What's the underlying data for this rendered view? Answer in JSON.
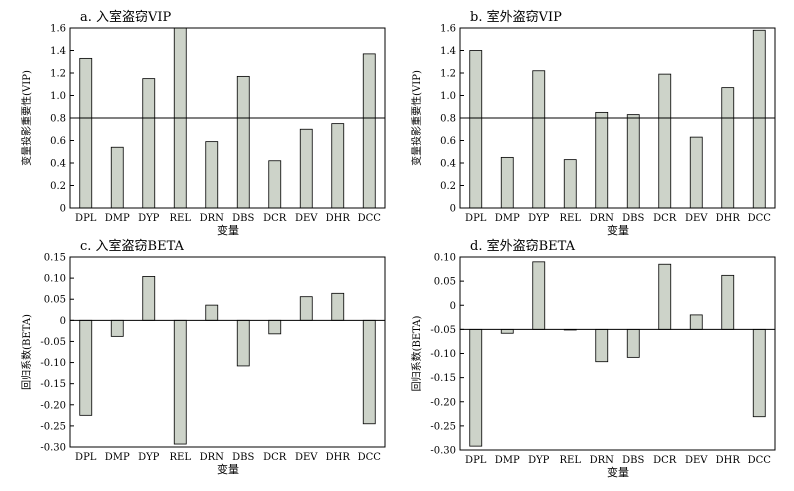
{
  "chart_data": [
    {
      "type": "bar",
      "title": "a. 入室盗窃VIP",
      "ylabel": "变量投影重要性(VIP)",
      "xlabel": "变量",
      "categories": [
        "DPL",
        "DMP",
        "DYP",
        "REL",
        "DRN",
        "DBS",
        "DCR",
        "DEV",
        "DHR",
        "DCC"
      ],
      "values": [
        1.33,
        0.54,
        1.15,
        1.6,
        0.59,
        1.17,
        0.42,
        0.7,
        0.75,
        1.37
      ],
      "ylim": [
        0,
        1.6
      ],
      "yticks": [
        0,
        0.2,
        0.4,
        0.6,
        0.8,
        1.0,
        1.2,
        1.4,
        1.6
      ],
      "ytick_labels": [
        "0",
        "0.2",
        "0.4",
        "0.6",
        "0.8",
        "1.0",
        "1.2",
        "1.4",
        "1.6"
      ],
      "reference_line": 0.8,
      "bar_color": "#cdd3c9",
      "grid": false
    },
    {
      "type": "bar",
      "title": "b. 室外盗窃VIP",
      "ylabel": "变量投影重要性(VIP)",
      "xlabel": "变量",
      "categories": [
        "DPL",
        "DMP",
        "DYP",
        "REL",
        "DRN",
        "DBS",
        "DCR",
        "DEV",
        "DHR",
        "DCC"
      ],
      "values": [
        1.4,
        0.45,
        1.22,
        0.43,
        0.85,
        0.83,
        1.19,
        0.63,
        1.07,
        1.58
      ],
      "ylim": [
        0,
        1.6
      ],
      "yticks": [
        0,
        0.2,
        0.4,
        0.6,
        0.8,
        1.0,
        1.2,
        1.4,
        1.6
      ],
      "ytick_labels": [
        "0",
        "0.2",
        "0.4",
        "0.6",
        "0.8",
        "1.0",
        "1.2",
        "1.4",
        "1.6"
      ],
      "reference_line": 0.8,
      "bar_color": "#cdd3c9",
      "grid": false
    },
    {
      "type": "bar",
      "title": "c. 入室盗窃BETA",
      "ylabel": "回归系数(BETA)",
      "xlabel": "变量",
      "categories": [
        "DPL",
        "DMP",
        "DYP",
        "REL",
        "DRN",
        "DBS",
        "DCR",
        "DEV",
        "DHR",
        "DCC"
      ],
      "values": [
        -0.225,
        -0.038,
        0.104,
        -0.293,
        0.036,
        -0.108,
        -0.032,
        0.056,
        0.064,
        -0.245
      ],
      "ylim": [
        -0.3,
        0.15
      ],
      "yticks": [
        -0.3,
        -0.25,
        -0.2,
        -0.15,
        -0.1,
        -0.05,
        0,
        0.05,
        0.1,
        0.15
      ],
      "ytick_labels": [
        "-0.30",
        "-0.25",
        "-0.20",
        "-0.15",
        "-0.10",
        "-0.05",
        "0",
        "0.05",
        "0.10",
        "0.15"
      ],
      "baseline": 0,
      "bar_color": "#cdd3c9",
      "grid": false
    },
    {
      "type": "bar",
      "title": "d. 室外盗窃BETA",
      "ylabel": "回归系数(BETA)",
      "xlabel": "变量",
      "categories": [
        "DPL",
        "DMP",
        "DYP",
        "REL",
        "DRN",
        "DBS",
        "DCR",
        "DEV",
        "DHR",
        "DCC"
      ],
      "values": [
        -0.292,
        -0.058,
        0.09,
        -0.051,
        -0.117,
        -0.108,
        0.085,
        -0.02,
        0.062,
        -0.231
      ],
      "ylim": [
        -0.3,
        0.1
      ],
      "yticks": [
        -0.3,
        -0.25,
        -0.2,
        -0.15,
        -0.1,
        -0.05,
        0,
        0.05,
        0.1
      ],
      "ytick_labels": [
        "-0.30",
        "-0.25",
        "-0.20",
        "-0.15",
        "-0.10",
        "-0.05",
        "0",
        "0.05",
        "0.10"
      ],
      "baseline": -0.05,
      "bar_color": "#cdd3c9",
      "grid": false
    }
  ]
}
